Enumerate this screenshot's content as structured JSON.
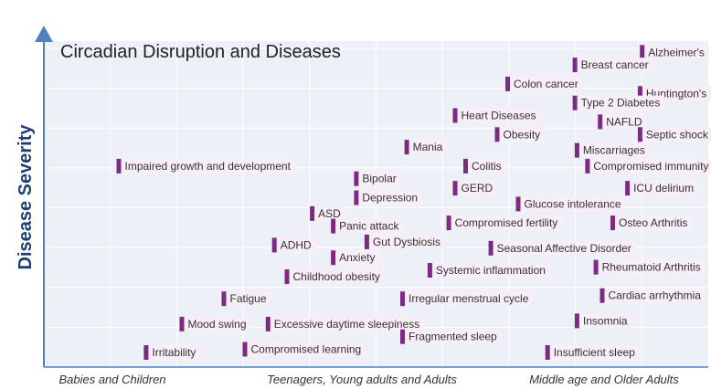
{
  "chart_data": {
    "type": "scatter",
    "title": "Circadian Disruption and Diseases",
    "ylabel": "Disease Severity",
    "xlabel": "",
    "x_categories": [
      "Babies and Children",
      "Teenagers, Young adults and Adults",
      "Middle age and Older Adults"
    ],
    "grid": true,
    "colors": {
      "plot_background": "#edf1f7",
      "grid": "#ffffff",
      "axis": "#4f81bd",
      "marker": "#7b2c82",
      "label_background": "#f8eef7"
    },
    "xlim": [
      0,
      3
    ],
    "ylim": [
      0,
      1
    ],
    "points": [
      {
        "label": "Alzheimer's",
        "x": 2.74,
        "y": 0.95
      },
      {
        "label": "Breast cancer",
        "x": 2.42,
        "y": 0.91
      },
      {
        "label": "Colon cancer",
        "x": 2.1,
        "y": 0.85
      },
      {
        "label": "Huntington's",
        "x": 2.73,
        "y": 0.82
      },
      {
        "label": "Type 2 Diabetes",
        "x": 2.42,
        "y": 0.79
      },
      {
        "label": "Heart Diseases",
        "x": 1.85,
        "y": 0.75
      },
      {
        "label": "NAFLD",
        "x": 2.54,
        "y": 0.73
      },
      {
        "label": "Obesity",
        "x": 2.05,
        "y": 0.69
      },
      {
        "label": "Septic shock",
        "x": 2.73,
        "y": 0.69
      },
      {
        "label": "Mania",
        "x": 1.62,
        "y": 0.65
      },
      {
        "label": "Miscarriages",
        "x": 2.43,
        "y": 0.64
      },
      {
        "label": "Impaired growth and development",
        "x": 0.25,
        "y": 0.59
      },
      {
        "label": "Colitis",
        "x": 1.9,
        "y": 0.59
      },
      {
        "label": "Compromised immunity",
        "x": 2.48,
        "y": 0.59
      },
      {
        "label": "Bipolar",
        "x": 1.38,
        "y": 0.55
      },
      {
        "label": "GERD",
        "x": 1.85,
        "y": 0.52
      },
      {
        "label": "ICU delirium",
        "x": 2.67,
        "y": 0.52
      },
      {
        "label": "Depression",
        "x": 1.38,
        "y": 0.49
      },
      {
        "label": "Glucose intolerance",
        "x": 2.15,
        "y": 0.47
      },
      {
        "label": "ASD",
        "x": 1.17,
        "y": 0.44
      },
      {
        "label": "Compromised fertility",
        "x": 1.82,
        "y": 0.41
      },
      {
        "label": "Osteo Arthritis",
        "x": 2.6,
        "y": 0.41
      },
      {
        "label": "Panic attack",
        "x": 1.27,
        "y": 0.4
      },
      {
        "label": "ADHD",
        "x": 0.99,
        "y": 0.34
      },
      {
        "label": "Gut Dysbiosis",
        "x": 1.43,
        "y": 0.35
      },
      {
        "label": "Seasonal Affective Disorder",
        "x": 2.02,
        "y": 0.33
      },
      {
        "label": "Anxiety",
        "x": 1.27,
        "y": 0.3
      },
      {
        "label": "Rheumatoid Arthritis",
        "x": 2.52,
        "y": 0.27
      },
      {
        "label": "Systemic inflammation",
        "x": 1.73,
        "y": 0.26
      },
      {
        "label": "Childhood obesity",
        "x": 1.05,
        "y": 0.24
      },
      {
        "label": "Cardiac arrhythmia",
        "x": 2.55,
        "y": 0.18
      },
      {
        "label": "Fatigue",
        "x": 0.75,
        "y": 0.17
      },
      {
        "label": "Irregular menstrual cycle",
        "x": 1.6,
        "y": 0.17
      },
      {
        "label": "Insomnia",
        "x": 2.43,
        "y": 0.1
      },
      {
        "label": "Mood swing",
        "x": 0.55,
        "y": 0.09
      },
      {
        "label": "Excessive daytime sleepiness",
        "x": 0.96,
        "y": 0.09
      },
      {
        "label": "Fragmented sleep",
        "x": 1.6,
        "y": 0.05
      },
      {
        "label": "Irritability",
        "x": 0.38,
        "y": 0.0
      },
      {
        "label": "Compromised learning",
        "x": 0.85,
        "y": 0.01
      },
      {
        "label": "Insufficient sleep",
        "x": 2.29,
        "y": 0.0
      }
    ]
  }
}
